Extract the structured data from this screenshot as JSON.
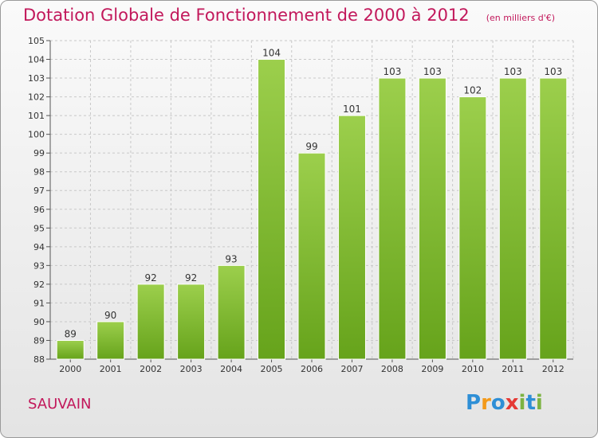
{
  "header": {
    "title": "Dotation Globale de Fonctionnement de 2000 à 2012",
    "unit_note": "(en milliers d'€)"
  },
  "footer": {
    "commune": "SAUVAIN",
    "logo": {
      "letters": [
        "P",
        "r",
        "o",
        "x",
        "i",
        "t",
        "i"
      ],
      "colors": [
        "#2e8fd6",
        "#f39a1a",
        "#2e8fd6",
        "#e53935",
        "#7cb342",
        "#2e8fd6",
        "#7cb342"
      ]
    }
  },
  "chart_data": {
    "type": "bar",
    "title": "Dotation Globale de Fonctionnement de 2000 à 2012",
    "subtitle": "(en milliers d'€)",
    "categories": [
      "2000",
      "2001",
      "2002",
      "2003",
      "2004",
      "2005",
      "2006",
      "2007",
      "2008",
      "2009",
      "2010",
      "2011",
      "2012"
    ],
    "values": [
      89,
      90,
      92,
      92,
      93,
      104,
      99,
      101,
      103,
      103,
      102,
      103,
      103
    ],
    "data_labels": [
      "89",
      "90",
      "92",
      "92",
      "93",
      "104",
      "99",
      "101",
      "103",
      "103",
      "102",
      "103",
      "103"
    ],
    "ylim": [
      88,
      105
    ],
    "yticks": [
      88,
      89,
      90,
      91,
      92,
      93,
      94,
      95,
      96,
      97,
      98,
      99,
      100,
      101,
      102,
      103,
      104,
      105
    ],
    "ytick_labels": [
      "88",
      "89",
      "90",
      "91",
      "92",
      "93",
      "94",
      "95",
      "96",
      "97",
      "98",
      "99",
      "100",
      "101",
      "102",
      "103",
      "104",
      "105"
    ],
    "grid": true,
    "bar_color_top": "#9ccf4c",
    "bar_color_bottom": "#66a31b",
    "bar_edge": "#ffffff",
    "grid_color": "#c8c8c8",
    "xlabel": "",
    "ylabel": ""
  }
}
